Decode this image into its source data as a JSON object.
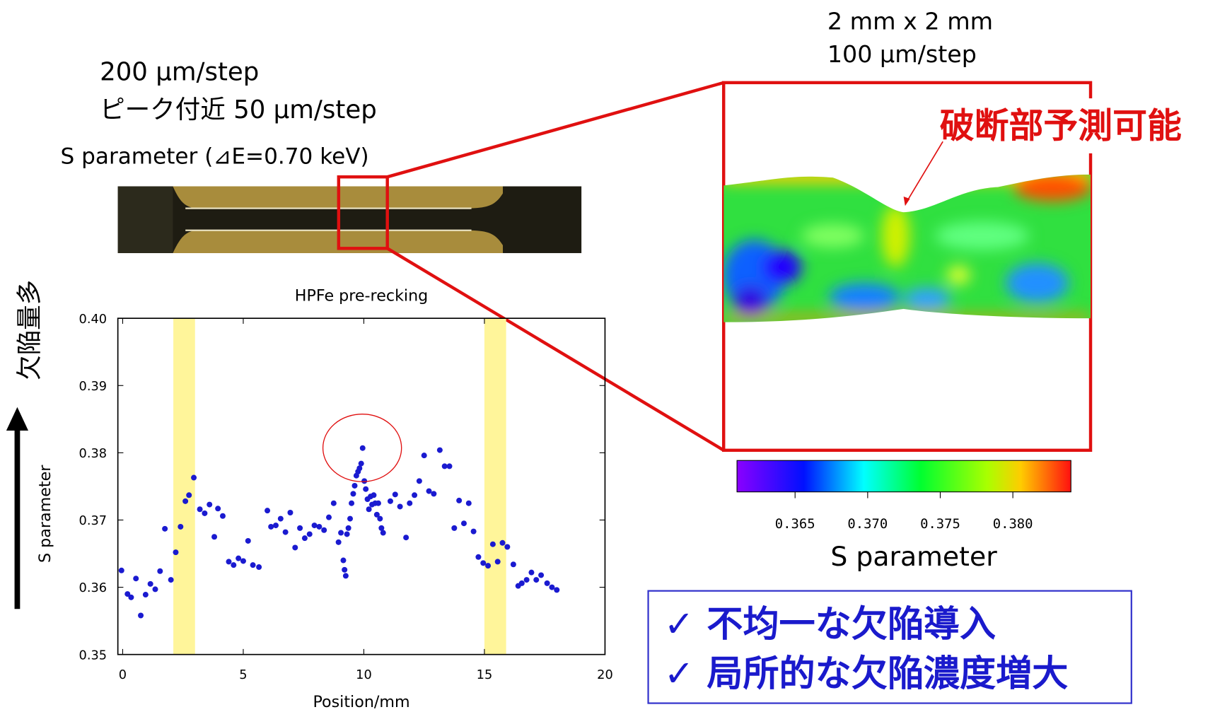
{
  "header": {
    "line1": "200 μm/step",
    "line2": "ピーク付近 50 μm/step",
    "line3": "S parameter (⊿E=0.70 keV)"
  },
  "map_caption": {
    "size": "2 mm x 2 mm",
    "step": "100 μm/step"
  },
  "annotation": "破断部予測可能",
  "side_label": "欠陥量多",
  "chart_data": {
    "type": "scatter",
    "title": "HPFe pre-recking",
    "x_label": "Position/mm",
    "y_label": "S parameter",
    "xlim": [
      -0.2,
      20
    ],
    "ylim": [
      0.35,
      0.4
    ],
    "xticks": [
      0,
      5,
      10,
      15,
      20
    ],
    "yticks": [
      0.35,
      0.36,
      0.37,
      0.38,
      0.39,
      {
        "value": 0.4,
        "label": "0.40"
      }
    ],
    "color": "#1a1ad0",
    "band_color": "#fff59a",
    "highlight_bands": [
      [
        2.1,
        3.0
      ],
      [
        15.0,
        15.9
      ]
    ],
    "x": [
      -0.05,
      0.2,
      0.35,
      0.55,
      0.75,
      0.95,
      1.15,
      1.35,
      1.55,
      1.75,
      2.0,
      2.2,
      2.4,
      2.6,
      2.75,
      2.95,
      3.2,
      3.4,
      3.6,
      3.8,
      3.95,
      4.15,
      4.4,
      4.6,
      4.8,
      5.0,
      5.2,
      5.4,
      5.65,
      6.0,
      6.15,
      6.35,
      6.55,
      6.75,
      6.95,
      7.15,
      7.35,
      7.55,
      7.75,
      7.95,
      8.15,
      8.35,
      8.55,
      8.75,
      8.95,
      9.05,
      9.15,
      9.2,
      9.25,
      9.3,
      9.36,
      9.43,
      9.49,
      9.56,
      9.62,
      9.69,
      9.76,
      9.82,
      9.89,
      9.95,
      10.02,
      10.08,
      10.15,
      10.21,
      10.28,
      10.34,
      10.41,
      10.47,
      10.54,
      10.6,
      10.67,
      10.73,
      10.8,
      11.1,
      11.3,
      11.5,
      11.75,
      11.9,
      12.1,
      12.3,
      12.5,
      12.7,
      12.9,
      13.15,
      13.35,
      13.55,
      13.75,
      13.95,
      14.15,
      14.35,
      14.55,
      14.75,
      14.95,
      15.15,
      15.35,
      15.55,
      15.75,
      15.95,
      16.2,
      16.4,
      16.55,
      16.75,
      16.95,
      17.15,
      17.35,
      17.6,
      17.8,
      18.0
    ],
    "values": [
      0.3625,
      0.359,
      0.3585,
      0.3613,
      0.3558,
      0.3589,
      0.3605,
      0.3597,
      0.3624,
      0.3687,
      0.3611,
      0.3652,
      0.369,
      0.3728,
      0.3737,
      0.3763,
      0.3716,
      0.371,
      0.3723,
      0.3675,
      0.3717,
      0.3706,
      0.3638,
      0.3633,
      0.3643,
      0.3639,
      0.3669,
      0.3633,
      0.363,
      0.3714,
      0.369,
      0.3692,
      0.3702,
      0.3682,
      0.3711,
      0.3659,
      0.3688,
      0.3673,
      0.3679,
      0.3692,
      0.369,
      0.3685,
      0.3704,
      0.3725,
      0.3667,
      0.3681,
      0.364,
      0.3626,
      0.3617,
      0.3679,
      0.3688,
      0.3702,
      0.3725,
      0.3739,
      0.3751,
      0.3766,
      0.3772,
      0.3777,
      0.3784,
      0.3807,
      0.3758,
      0.3746,
      0.3731,
      0.3716,
      0.3735,
      0.3723,
      0.3737,
      0.3725,
      0.3708,
      0.3725,
      0.3702,
      0.3688,
      0.3681,
      0.3728,
      0.3738,
      0.372,
      0.3674,
      0.3725,
      0.3737,
      0.3758,
      0.3796,
      0.3743,
      0.3739,
      0.3804,
      0.378,
      0.378,
      0.3688,
      0.3729,
      0.3695,
      0.3725,
      0.3683,
      0.3645,
      0.3636,
      0.3632,
      0.3664,
      0.3638,
      0.3666,
      0.366,
      0.3634,
      0.3602,
      0.3606,
      0.3611,
      0.3622,
      0.3611,
      0.3618,
      0.3606,
      0.36,
      0.3596
    ]
  },
  "colorbar": {
    "label": "S parameter",
    "lim": [
      0.361,
      0.384
    ],
    "ticks": [
      0.365,
      {
        "value": 0.37,
        "label": "0.370"
      },
      0.375,
      {
        "value": 0.38,
        "label": "0.380"
      }
    ]
  },
  "notes": [
    "✓ 不均一な欠陥導入",
    "✓ 局所的な欠陥濃度増大"
  ]
}
